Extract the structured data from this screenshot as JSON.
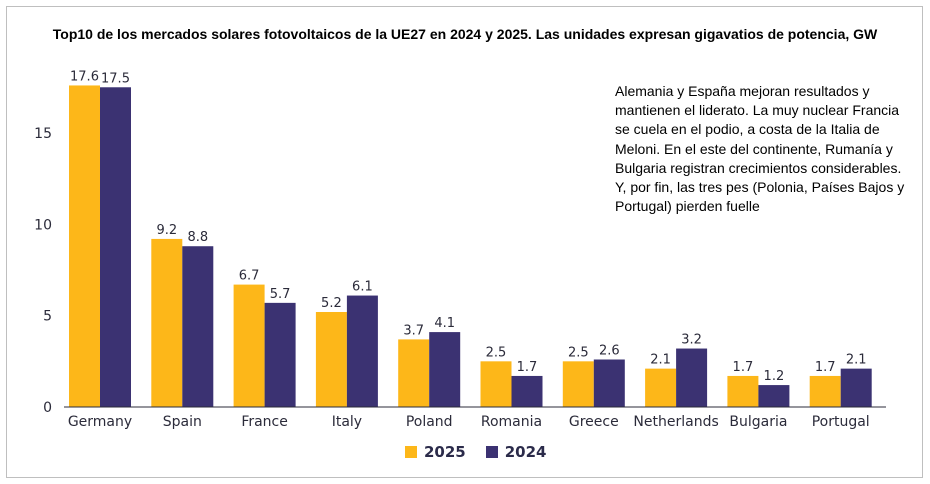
{
  "title": "Top10 de los mercados solares fotovoltaicos de la UE27 en 2024 y 2025. Las unidades expresan gigavatios de potencia, GW",
  "annotation": "Alemania y España mejoran resultados y mantienen el liderato. La muy nuclear Francia se cuela en el podio, a costa de la Italia de Meloni. En el este del continente, Rumanía y Bulgaria registran crecimientos considerables. Y, por fin, las tres pes (Polonia, Países Bajos y Portugal) pierden fuelle",
  "chart_data": {
    "type": "bar",
    "title": "Top10 de los mercados solares fotovoltaicos de la UE27 en 2024 y 2025. Las unidades expresan gigavatios de potencia, GW",
    "categories": [
      "Germany",
      "Spain",
      "France",
      "Italy",
      "Poland",
      "Romania",
      "Greece",
      "Netherlands",
      "Bulgaria",
      "Portugal"
    ],
    "series": [
      {
        "name": "2025",
        "color": "#FDB719",
        "values": [
          17.6,
          9.2,
          6.7,
          5.2,
          3.7,
          2.5,
          2.5,
          2.1,
          1.7,
          1.7
        ]
      },
      {
        "name": "2024",
        "color": "#3B3272",
        "values": [
          17.5,
          8.8,
          5.7,
          6.1,
          4.1,
          1.7,
          2.6,
          3.2,
          1.2,
          2.1
        ]
      }
    ],
    "yticks": [
      "0",
      "5",
      "10",
      "15"
    ],
    "ylim": [
      0,
      18
    ],
    "grid": false,
    "legend": "bottom",
    "xlabel": "",
    "ylabel": ""
  }
}
